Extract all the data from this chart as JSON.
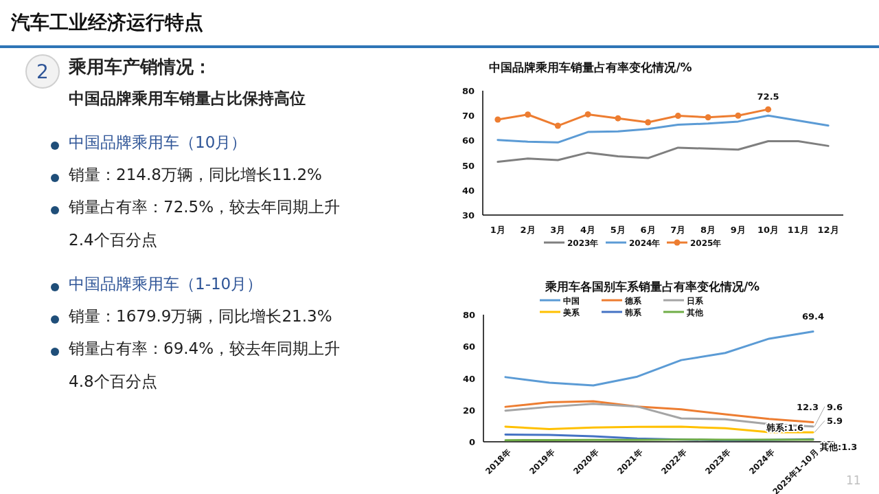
{
  "chart_data": [
    {
      "type": "other",
      "title": "汽车工业经济运行特点",
      "annotations": [
        "2",
        "乘用车产销情况：",
        "中国品牌乘用车销量占比保持高位",
        "中国品牌乘用车（10月）",
        "销量：214.8万辆，同比增长11.2%",
        "销量占有率：72.5%，较去年同期上升2.4个百分点",
        "中国品牌乘用车（1-10月）",
        "销量：1679.9万辆，同比增长21.3%",
        "销量占有率：69.4%，较去年同期上升4.8个百分点",
        "11"
      ]
    },
    {
      "type": "line",
      "title": "中国品牌乘用车销量占有率变化情况/%",
      "categories": [
        "1月",
        "2月",
        "3月",
        "4月",
        "5月",
        "6月",
        "7月",
        "8月",
        "9月",
        "10月",
        "11月",
        "12月"
      ],
      "ylim": [
        30,
        80
      ],
      "yticks": [
        30,
        40,
        50,
        60,
        70,
        80
      ],
      "legend": "bottom",
      "series": [
        {
          "name": "2023年",
          "color": "#7f7f7f",
          "values": [
            51.4,
            52.7,
            52.1,
            55.1,
            53.6,
            52.9,
            57.1,
            56.7,
            56.3,
            59.7,
            59.7,
            57.8
          ]
        },
        {
          "name": "2024年",
          "color": "#5b9bd5",
          "values": [
            60.2,
            59.5,
            59.2,
            63.4,
            63.6,
            64.6,
            66.3,
            66.8,
            67.6,
            70.0,
            68.0,
            66.0
          ]
        },
        {
          "name": "2025年",
          "color": "#ed7d31",
          "marker": "circle",
          "values": [
            68.4,
            70.4,
            65.9,
            70.5,
            68.9,
            67.3,
            69.9,
            69.3,
            70.0,
            72.5,
            null,
            null
          ],
          "value_labels": [
            null,
            null,
            null,
            null,
            null,
            null,
            null,
            null,
            null,
            "72.5",
            null,
            null
          ]
        }
      ]
    },
    {
      "type": "line",
      "title": "乘用车各国别车系销量占有率变化情况/%",
      "categories": [
        "2018年",
        "2019年",
        "2020年",
        "2021年",
        "2022年",
        "2023年",
        "2024年",
        "2025年1-10月"
      ],
      "ylim": [
        0,
        80
      ],
      "yticks": [
        0,
        20,
        40,
        60,
        80
      ],
      "legend": "top",
      "series": [
        {
          "name": "中国",
          "color": "#5b9bd5",
          "values": [
            40.7,
            37.2,
            35.5,
            41.0,
            51.4,
            55.9,
            64.9,
            69.4
          ],
          "value_labels": [
            null,
            null,
            null,
            null,
            null,
            null,
            null,
            "69.4"
          ]
        },
        {
          "name": "德系",
          "color": "#ed7d31",
          "values": [
            22.0,
            24.9,
            25.5,
            22.2,
            20.4,
            17.3,
            14.4,
            12.3
          ],
          "value_labels": [
            null,
            null,
            null,
            null,
            null,
            null,
            null,
            "12.3"
          ]
        },
        {
          "name": "日系",
          "color": "#a5a5a5",
          "values": [
            19.6,
            22.0,
            23.9,
            22.2,
            14.7,
            14.2,
            11.1,
            9.6
          ],
          "value_labels": [
            null,
            null,
            null,
            null,
            null,
            null,
            null,
            "9.6"
          ]
        },
        {
          "name": "美系",
          "color": "#ffc000",
          "values": [
            9.5,
            8.0,
            9.0,
            9.4,
            9.5,
            8.5,
            6.1,
            5.9
          ],
          "value_labels": [
            null,
            null,
            null,
            null,
            null,
            null,
            null,
            "5.9"
          ]
        },
        {
          "name": "韩系",
          "color": "#4472c4",
          "values": [
            4.5,
            4.3,
            3.5,
            2.1,
            1.4,
            1.0,
            1.2,
            1.6
          ],
          "value_labels": [
            null,
            null,
            null,
            null,
            null,
            null,
            null,
            "韩系:1.6"
          ]
        },
        {
          "name": "其他",
          "color": "#70ad47",
          "values": [
            1.0,
            1.1,
            1.2,
            1.2,
            1.4,
            1.3,
            1.3,
            1.3
          ],
          "value_labels": [
            null,
            null,
            null,
            null,
            null,
            null,
            null,
            "其他:1.3"
          ]
        }
      ]
    }
  ]
}
